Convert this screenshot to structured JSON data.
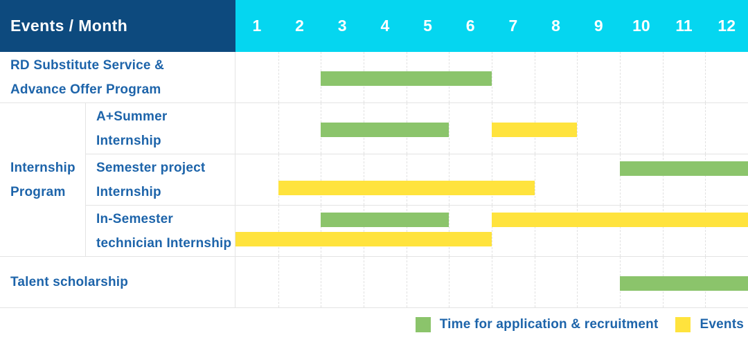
{
  "header": {
    "title": "Events / Month"
  },
  "colors": {
    "navy": "#0d4a7e",
    "cyan": "#05d6f0",
    "blue": "#1d64aa",
    "green": "#8bc46b",
    "yellow": "#ffe33d",
    "border": "#e4e4e4"
  },
  "chart_data": {
    "type": "gantt",
    "title": "Events / Month",
    "x_axis": {
      "label": "Month",
      "ticks": [
        "1",
        "2",
        "3",
        "4",
        "5",
        "6",
        "7",
        "8",
        "9",
        "10",
        "11",
        "12"
      ],
      "range": [
        1,
        12
      ]
    },
    "grid": "dashed vertical month lines",
    "legend_position": "bottom-right",
    "legend": [
      {
        "name": "Time for application & recruitment",
        "color": "green"
      },
      {
        "name": "Events",
        "color": "yellow"
      }
    ],
    "groups": [
      {
        "name": "Internship Program",
        "label_lines": [
          "Internship",
          "Program"
        ]
      }
    ],
    "rows": [
      {
        "group": "",
        "label": "RD Substitute Service & Advance Offer Program",
        "label_lines": [
          "RD Substitute Service &",
          "Advance Offer Program"
        ],
        "bars": [
          {
            "series": "Time for application & recruitment",
            "color": "green",
            "start_month": 3,
            "end_month": 6,
            "lane": "middle"
          }
        ]
      },
      {
        "group": "Internship Program",
        "label": "A+Summer Internship",
        "label_lines": [
          "A+Summer",
          "Internship"
        ],
        "bars": [
          {
            "series": "Time for application & recruitment",
            "color": "green",
            "start_month": 3,
            "end_month": 5,
            "lane": "middle"
          },
          {
            "series": "Events",
            "color": "yellow",
            "start_month": 7,
            "end_month": 8,
            "lane": "middle"
          }
        ]
      },
      {
        "group": "Internship Program",
        "label": "Semester project Internship",
        "label_lines": [
          "Semester project",
          "Internship"
        ],
        "bars": [
          {
            "series": "Time for application & recruitment",
            "color": "green",
            "start_month": 10,
            "end_month": 12,
            "lane": "top"
          },
          {
            "series": "Events",
            "color": "yellow",
            "start_month": 2,
            "end_month": 7,
            "lane": "bottom"
          }
        ]
      },
      {
        "group": "Internship Program",
        "label": "In-Semester technician Internship",
        "label_lines": [
          "In-Semester",
          "technician Internship"
        ],
        "bars": [
          {
            "series": "Time for application & recruitment",
            "color": "green",
            "start_month": 3,
            "end_month": 5,
            "lane": "top"
          },
          {
            "series": "Events",
            "color": "yellow",
            "start_month": 7,
            "end_month": 12,
            "lane": "top"
          },
          {
            "series": "Events",
            "color": "yellow",
            "start_month": 1,
            "end_month": 6,
            "lane": "bottom"
          }
        ]
      },
      {
        "group": "",
        "label": "Talent scholarship",
        "label_lines": [
          "Talent scholarship"
        ],
        "bars": [
          {
            "series": "Time for application & recruitment",
            "color": "green",
            "start_month": 10,
            "end_month": 12,
            "lane": "middle"
          }
        ]
      }
    ]
  }
}
